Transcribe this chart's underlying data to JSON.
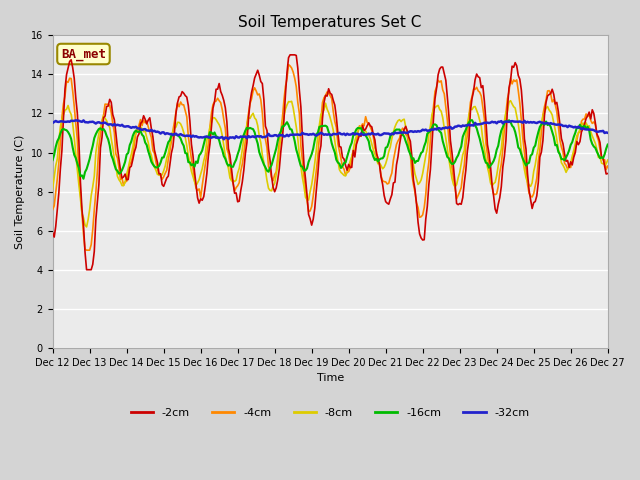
{
  "title": "Soil Temperatures Set C",
  "xlabel": "Time",
  "ylabel": "Soil Temperature (C)",
  "ylim": [
    0,
    16
  ],
  "yticks": [
    0,
    2,
    4,
    6,
    8,
    10,
    12,
    14,
    16
  ],
  "annotation_text": "BA_met",
  "annotation_color": "#8b0000",
  "annotation_bg": "#ffffcc",
  "annotation_border": "#998800",
  "legend_labels": [
    "-2cm",
    "-4cm",
    "-8cm",
    "-16cm",
    "-32cm"
  ],
  "line_colors": [
    "#cc0000",
    "#ff8800",
    "#ddcc00",
    "#00bb00",
    "#2222cc"
  ],
  "line_widths": [
    1.2,
    1.2,
    1.2,
    1.5,
    1.8
  ],
  "xtick_labels": [
    "Dec 12",
    "Dec 13",
    "Dec 14",
    "Dec 15",
    "Dec 16",
    "Dec 17",
    "Dec 18",
    "Dec 19",
    "Dec 20",
    "Dec 21",
    "Dec 22",
    "Dec 23",
    "Dec 24",
    "Dec 25",
    "Dec 26",
    "Dec 27"
  ],
  "fig_facecolor": "#d4d4d4",
  "axes_facecolor": "#ebebeb",
  "grid_color": "#ffffff",
  "title_fontsize": 11,
  "label_fontsize": 8,
  "tick_fontsize": 7,
  "legend_fontsize": 8
}
